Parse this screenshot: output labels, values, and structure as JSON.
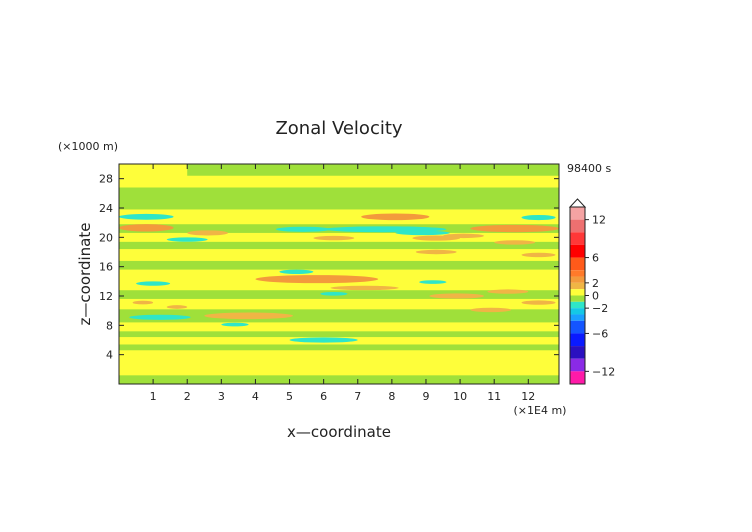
{
  "chart_data": {
    "type": "heatmap",
    "title": "Zonal Velocity",
    "xlabel": "x—coordinate",
    "ylabel": "z—coordinate",
    "x_unit": "(×1E4 m)",
    "y_unit": "(×1000 m)",
    "time_label": "98400 s",
    "xlim": [
      0,
      12.9
    ],
    "ylim": [
      0,
      30
    ],
    "x_ticks": [
      1,
      2,
      3,
      4,
      5,
      6,
      7,
      8,
      9,
      10,
      11,
      12
    ],
    "y_ticks": [
      4,
      8,
      12,
      16,
      20,
      24,
      28
    ],
    "colorbar": {
      "range": [
        -14,
        14
      ],
      "tick_values": [
        12,
        6,
        2,
        0,
        -2,
        -6,
        -12
      ],
      "tick_labels": [
        "12",
        "6",
        "2",
        "0",
        "−2",
        "−6",
        "−12"
      ],
      "levels": [
        {
          "from": 12,
          "to": 14,
          "color": "#f5a3a3"
        },
        {
          "from": 10,
          "to": 12,
          "color": "#ee7070"
        },
        {
          "from": 8,
          "to": 10,
          "color": "#ff3838"
        },
        {
          "from": 6,
          "to": 8,
          "color": "#ff0000"
        },
        {
          "from": 4,
          "to": 6,
          "color": "#ff5a1a"
        },
        {
          "from": 3,
          "to": 4,
          "color": "#ff7a2a"
        },
        {
          "from": 2,
          "to": 3,
          "color": "#f39a3c"
        },
        {
          "from": 1,
          "to": 2,
          "color": "#f0b545"
        },
        {
          "from": 0,
          "to": 1,
          "color": "#fefe3a"
        },
        {
          "from": -1,
          "to": 0,
          "color": "#9fe03a"
        },
        {
          "from": -2,
          "to": -1,
          "color": "#2ee6c8"
        },
        {
          "from": -3,
          "to": -2,
          "color": "#14c8e6"
        },
        {
          "from": -4,
          "to": -3,
          "color": "#1aa0ff"
        },
        {
          "from": -6,
          "to": -4,
          "color": "#1455ff"
        },
        {
          "from": -8,
          "to": -6,
          "color": "#0a1aff"
        },
        {
          "from": -10,
          "to": -8,
          "color": "#2a10c0"
        },
        {
          "from": -12,
          "to": -10,
          "color": "#8a2ae6"
        },
        {
          "from": -14,
          "to": -12,
          "color": "#ff1aa8"
        }
      ]
    },
    "field": {
      "background_value": 0.5,
      "bands": [
        {
          "x1": 0.0,
          "x2": 12.9,
          "z1": 0.0,
          "z2": 1.2,
          "value": -0.5
        },
        {
          "x1": 0.0,
          "x2": 12.9,
          "z1": 1.2,
          "z2": 4.6,
          "value": 0.5
        },
        {
          "x1": 0.0,
          "x2": 12.9,
          "z1": 4.6,
          "z2": 5.4,
          "value": -0.5
        },
        {
          "x1": 0.0,
          "x2": 12.9,
          "z1": 5.4,
          "z2": 6.4,
          "value": 0.5
        },
        {
          "x1": 0.0,
          "x2": 12.9,
          "z1": 6.4,
          "z2": 7.2,
          "value": -0.5
        },
        {
          "x1": 0.0,
          "x2": 12.9,
          "z1": 7.2,
          "z2": 8.4,
          "value": 0.5
        },
        {
          "x1": 0.0,
          "x2": 12.9,
          "z1": 8.4,
          "z2": 10.2,
          "value": -0.5
        },
        {
          "x1": 0.0,
          "x2": 12.9,
          "z1": 10.2,
          "z2": 11.6,
          "value": 0.5
        },
        {
          "x1": 0.0,
          "x2": 12.9,
          "z1": 11.6,
          "z2": 12.8,
          "value": -0.5
        },
        {
          "x1": 0.0,
          "x2": 12.9,
          "z1": 12.8,
          "z2": 15.6,
          "value": 0.5
        },
        {
          "x1": 0.0,
          "x2": 12.9,
          "z1": 15.6,
          "z2": 16.8,
          "value": -0.5
        },
        {
          "x1": 0.0,
          "x2": 12.9,
          "z1": 16.8,
          "z2": 18.4,
          "value": 0.5
        },
        {
          "x1": 0.0,
          "x2": 12.9,
          "z1": 18.4,
          "z2": 19.4,
          "value": -0.5
        },
        {
          "x1": 0.0,
          "x2": 12.9,
          "z1": 19.4,
          "z2": 20.6,
          "value": 0.5
        },
        {
          "x1": 0.0,
          "x2": 12.9,
          "z1": 20.6,
          "z2": 21.8,
          "value": -0.5
        },
        {
          "x1": 0.0,
          "x2": 12.9,
          "z1": 21.8,
          "z2": 23.8,
          "value": 0.5
        },
        {
          "x1": 0.0,
          "x2": 12.9,
          "z1": 23.8,
          "z2": 26.8,
          "value": -0.5
        },
        {
          "x1": 0.0,
          "x2": 12.9,
          "z1": 26.8,
          "z2": 30.0,
          "value": 0.5
        },
        {
          "x1": 2.0,
          "x2": 12.9,
          "z1": 28.4,
          "z2": 30.0,
          "value": -0.5
        }
      ],
      "cells": [
        {
          "x": 0.8,
          "z": 21.3,
          "rx": 0.8,
          "rz": 0.5,
          "value": 2.5
        },
        {
          "x": 2.6,
          "z": 20.6,
          "rx": 0.6,
          "rz": 0.35,
          "value": 1.5
        },
        {
          "x": 8.1,
          "z": 22.8,
          "rx": 1.0,
          "rz": 0.45,
          "value": 2.5
        },
        {
          "x": 11.6,
          "z": 21.2,
          "rx": 1.3,
          "rz": 0.5,
          "value": 2.5
        },
        {
          "x": 0.8,
          "z": 22.8,
          "rx": 0.8,
          "rz": 0.4,
          "value": -1.5
        },
        {
          "x": 2.0,
          "z": 19.7,
          "rx": 0.6,
          "rz": 0.3,
          "value": -1.5
        },
        {
          "x": 5.4,
          "z": 21.1,
          "rx": 0.8,
          "rz": 0.35,
          "value": -1.5
        },
        {
          "x": 7.8,
          "z": 21.1,
          "rx": 1.8,
          "rz": 0.4,
          "value": -1.5
        },
        {
          "x": 8.9,
          "z": 20.6,
          "rx": 0.8,
          "rz": 0.3,
          "value": -1.5
        },
        {
          "x": 12.3,
          "z": 22.7,
          "rx": 0.5,
          "rz": 0.35,
          "value": -1.5
        },
        {
          "x": 10.1,
          "z": 20.2,
          "rx": 0.6,
          "rz": 0.3,
          "value": 1.5
        },
        {
          "x": 6.3,
          "z": 19.9,
          "rx": 0.6,
          "rz": 0.3,
          "value": 1.5
        },
        {
          "x": 9.3,
          "z": 19.9,
          "rx": 0.7,
          "rz": 0.35,
          "value": 1.5
        },
        {
          "x": 11.6,
          "z": 19.3,
          "rx": 0.6,
          "rz": 0.3,
          "value": 1.5
        },
        {
          "x": 9.3,
          "z": 18.0,
          "rx": 0.6,
          "rz": 0.3,
          "value": 1.5
        },
        {
          "x": 12.3,
          "z": 17.6,
          "rx": 0.5,
          "rz": 0.3,
          "value": 1.5
        },
        {
          "x": 5.2,
          "z": 15.3,
          "rx": 0.5,
          "rz": 0.3,
          "value": -1.5
        },
        {
          "x": 5.8,
          "z": 14.3,
          "rx": 1.8,
          "rz": 0.55,
          "value": 2.5
        },
        {
          "x": 7.2,
          "z": 13.1,
          "rx": 1.0,
          "rz": 0.3,
          "value": 1.5
        },
        {
          "x": 1.0,
          "z": 13.7,
          "rx": 0.5,
          "rz": 0.3,
          "value": -1.5
        },
        {
          "x": 9.2,
          "z": 13.9,
          "rx": 0.4,
          "rz": 0.25,
          "value": -1.5
        },
        {
          "x": 9.9,
          "z": 12.0,
          "rx": 0.8,
          "rz": 0.35,
          "value": 1.5
        },
        {
          "x": 6.3,
          "z": 12.3,
          "rx": 0.4,
          "rz": 0.25,
          "value": -1.5
        },
        {
          "x": 11.4,
          "z": 12.6,
          "rx": 0.6,
          "rz": 0.3,
          "value": 1.5
        },
        {
          "x": 0.7,
          "z": 11.1,
          "rx": 0.3,
          "rz": 0.25,
          "value": 1.5
        },
        {
          "x": 1.7,
          "z": 10.5,
          "rx": 0.3,
          "rz": 0.25,
          "value": 1.5
        },
        {
          "x": 12.3,
          "z": 11.1,
          "rx": 0.5,
          "rz": 0.3,
          "value": 1.5
        },
        {
          "x": 10.9,
          "z": 10.1,
          "rx": 0.6,
          "rz": 0.3,
          "value": 1.5
        },
        {
          "x": 1.2,
          "z": 9.1,
          "rx": 0.9,
          "rz": 0.35,
          "value": -1.5
        },
        {
          "x": 3.8,
          "z": 9.3,
          "rx": 1.3,
          "rz": 0.45,
          "value": 1.5
        },
        {
          "x": 3.4,
          "z": 8.1,
          "rx": 0.4,
          "rz": 0.25,
          "value": -1.5
        },
        {
          "x": 6.0,
          "z": 6.0,
          "rx": 1.0,
          "rz": 0.35,
          "value": -1.5
        },
        {
          "x": 8.8,
          "z": 26.2,
          "rx": 1.5,
          "rz": 0.4,
          "value": -0.5
        }
      ]
    }
  }
}
